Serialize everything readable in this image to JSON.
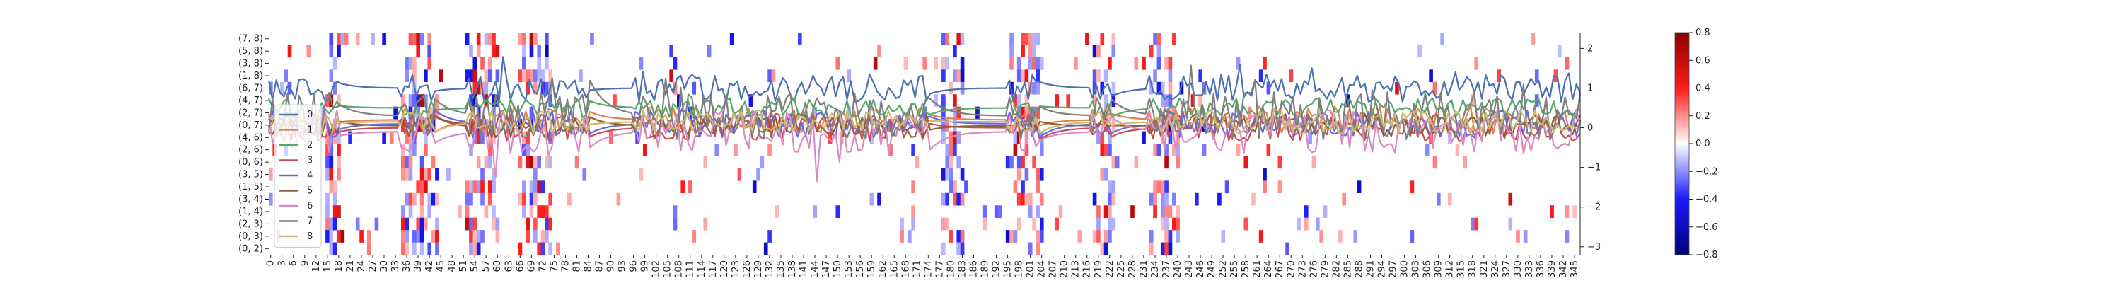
{
  "chart_data": {
    "type": "heatmap",
    "title": "",
    "xlabel": "",
    "ylabel": "",
    "y_categories": [
      "(7, 8)",
      "(5, 8)",
      "(3, 8)",
      "(1, 8)",
      "(6, 7)",
      "(4, 7)",
      "(2, 7)",
      "(0, 7)",
      "(4, 6)",
      "(2, 6)",
      "(0, 6)",
      "(3, 5)",
      "(1, 5)",
      "(3, 4)",
      "(1, 4)",
      "(2, 3)",
      "(0, 3)",
      "(0, 2)"
    ],
    "x_range": [
      0,
      347
    ],
    "x_tick_step": 3,
    "colorbar": {
      "min": -0.8,
      "max": 0.8,
      "ticks": [
        "0.8",
        "0.6",
        "0.4",
        "0.2",
        "0.0",
        "−0.2",
        "−0.4",
        "−0.6",
        "−0.8"
      ],
      "colors": {
        "neg_dark": "#00007a",
        "neg": "#1a1aff",
        "zero": "#ffffff",
        "pos": "#ff1a1a",
        "pos_dark": "#8b0000"
      }
    },
    "dense_columns": [
      [
        15,
        18
      ],
      [
        35,
        44
      ],
      [
        52,
        60
      ],
      [
        66,
        74
      ],
      [
        178,
        183
      ],
      [
        196,
        204
      ],
      [
        218,
        223
      ],
      [
        233,
        240
      ]
    ],
    "overlay": {
      "type": "line",
      "ylim": [
        -3.2,
        2.4
      ],
      "y_ticks": [
        "2",
        "1",
        "0",
        "−1",
        "−2",
        "−3"
      ],
      "series": [
        {
          "name": "0",
          "color": "#4c72b0"
        },
        {
          "name": "1",
          "color": "#dd8452"
        },
        {
          "name": "2",
          "color": "#55a868"
        },
        {
          "name": "3",
          "color": "#c44e52"
        },
        {
          "name": "4",
          "color": "#6a6ad8"
        },
        {
          "name": "5",
          "color": "#8c613c"
        },
        {
          "name": "6",
          "color": "#da8bc3"
        },
        {
          "name": "7",
          "color": "#7f7f7f"
        },
        {
          "name": "8",
          "color": "#ccb974"
        }
      ],
      "legend_position": "left"
    }
  }
}
